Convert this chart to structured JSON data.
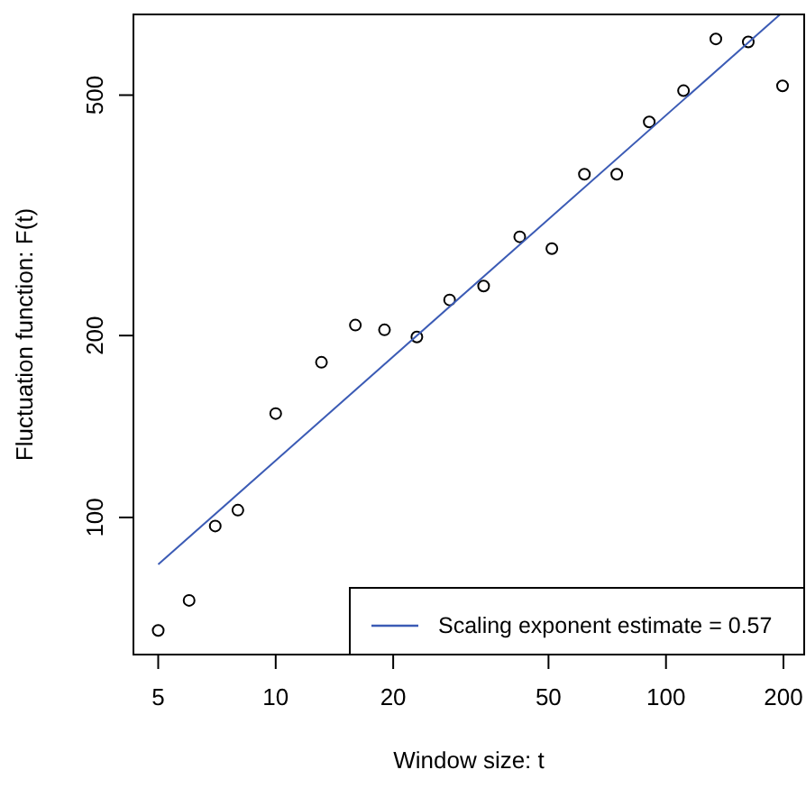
{
  "chart_data": {
    "type": "scatter",
    "xlabel": "Window size: t",
    "ylabel": "Fluctuation function: F(t)",
    "log": "xy",
    "xlim": [
      4.32,
      226
    ],
    "ylim": [
      59.3,
      680
    ],
    "xticks": [
      5,
      10,
      20,
      50,
      100,
      200
    ],
    "yticks": [
      100,
      200,
      500
    ],
    "grid": false,
    "legend": "bottom right",
    "x": [
      5,
      6,
      7,
      8,
      10,
      13.1,
      16,
      19,
      23,
      27.9,
      34.1,
      42.2,
      51,
      61.8,
      74.8,
      90.6,
      110.9,
      134.2,
      162.5,
      198.9
    ],
    "series": [
      {
        "marker": "circle",
        "color": "#000000",
        "values": [
          65,
          72.9,
          96.8,
          102.8,
          148.6,
          180.6,
          208.1,
          204.4,
          198.9,
          229.1,
          241.5,
          291.4,
          278.5,
          369.9,
          369.9,
          451.4,
          508.5,
          619.4,
          612.2,
          517.9
        ]
      },
      {
        "type": "line",
        "name": "Scaling exponent estimate = 0.57",
        "color": "#3b5bb5",
        "x": [
          5,
          196
        ],
        "values": [
          83.6,
          680
        ],
        "line_style": "solid",
        "marker": "none"
      }
    ]
  }
}
